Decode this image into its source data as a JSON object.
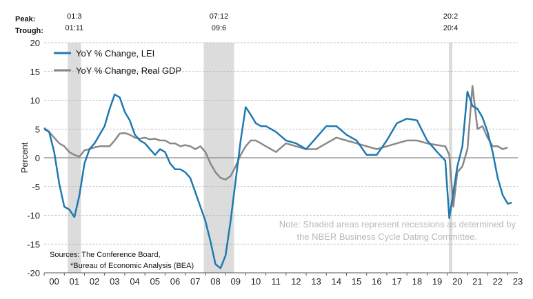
{
  "header": {
    "peak_label": "Peak:",
    "trough_label": "Trough:"
  },
  "recessions": [
    {
      "peak": "01:3",
      "trough": "01:11",
      "start": 2001.17,
      "end": 2001.83
    },
    {
      "peak": "07:12",
      "trough": "09:6",
      "start": 2007.92,
      "end": 2009.42
    },
    {
      "peak": "20:2",
      "trough": "20:4",
      "start": 2020.08,
      "end": 2020.25
    }
  ],
  "note": {
    "line1": "Note: Shaded areas represent recessions as determined by",
    "line2": "the NBER Business Cycle Dating Committee."
  },
  "sources": {
    "line1": "Sources: The Conference Board,",
    "line2": "*Bureau of Economic Analysis (BEA)"
  },
  "colors": {
    "lei": "#1f78b0",
    "gdp": "#888888",
    "recession": "#dcdcdc",
    "grid": "#b0b0b0",
    "zero": "#888888"
  },
  "chart_data": {
    "type": "line",
    "xlabel": "",
    "ylabel": "Percent",
    "xlim": [
      2000.0,
      2023.5
    ],
    "ylim": [
      -20,
      20
    ],
    "yticks": [
      20,
      15,
      10,
      5,
      0,
      -5,
      -10,
      -15,
      -20
    ],
    "xtick_labels": [
      "00",
      "01",
      "02",
      "03",
      "04",
      "05",
      "06",
      "07",
      "08",
      "09",
      "10",
      "11",
      "12",
      "13",
      "14",
      "15",
      "16",
      "17",
      "18",
      "19",
      "20",
      "21",
      "22",
      "23"
    ],
    "legend_position": "top-left",
    "series": [
      {
        "name": "YoY % Change, LEI",
        "x": [
          2000.0,
          2000.25,
          2000.5,
          2000.75,
          2001.0,
          2001.25,
          2001.5,
          2001.75,
          2002.0,
          2002.25,
          2002.5,
          2002.75,
          2003.0,
          2003.25,
          2003.5,
          2003.75,
          2004.0,
          2004.25,
          2004.5,
          2004.75,
          2005.0,
          2005.25,
          2005.5,
          2005.75,
          2006.0,
          2006.25,
          2006.5,
          2006.75,
          2007.0,
          2007.25,
          2007.5,
          2007.75,
          2008.0,
          2008.25,
          2008.5,
          2008.75,
          2009.0,
          2009.25,
          2009.5,
          2009.75,
          2010.0,
          2010.25,
          2010.5,
          2010.75,
          2011.0,
          2011.5,
          2012.0,
          2012.5,
          2013.0,
          2013.5,
          2014.0,
          2014.5,
          2015.0,
          2015.5,
          2016.0,
          2016.5,
          2017.0,
          2017.5,
          2018.0,
          2018.5,
          2019.0,
          2019.5,
          2019.9,
          2020.1,
          2020.3,
          2020.5,
          2020.75,
          2021.0,
          2021.25,
          2021.5,
          2021.75,
          2022.0,
          2022.25,
          2022.5,
          2022.75,
          2023.0,
          2023.2
        ],
        "values": [
          5.0,
          4.5,
          1.0,
          -4.5,
          -8.5,
          -9.0,
          -10.3,
          -6.5,
          -1.0,
          1.5,
          2.5,
          4.0,
          5.5,
          8.5,
          11.0,
          10.5,
          8.0,
          6.5,
          4.0,
          3.0,
          2.5,
          1.5,
          0.5,
          1.5,
          1.0,
          -1.0,
          -2.0,
          -2.0,
          -2.5,
          -3.5,
          -6.0,
          -8.5,
          -11.0,
          -14.5,
          -18.5,
          -19.2,
          -17.0,
          -11.0,
          -4.0,
          3.0,
          8.8,
          7.5,
          6.0,
          5.5,
          5.5,
          4.5,
          3.0,
          2.5,
          1.5,
          3.5,
          5.5,
          5.5,
          4.0,
          3.0,
          0.5,
          0.5,
          3.0,
          6.0,
          6.8,
          6.5,
          3.0,
          1.0,
          -0.5,
          -10.5,
          -6.0,
          -1.5,
          2.0,
          11.5,
          9.0,
          8.5,
          7.0,
          4.5,
          1.0,
          -3.5,
          -6.5,
          -8.0,
          -7.8
        ]
      },
      {
        "name": "YoY % Change, Real GDP",
        "x": [
          2000.0,
          2000.25,
          2000.5,
          2000.75,
          2001.0,
          2001.25,
          2001.5,
          2001.75,
          2002.0,
          2002.25,
          2002.5,
          2002.75,
          2003.0,
          2003.25,
          2003.5,
          2003.75,
          2004.0,
          2004.25,
          2004.5,
          2004.75,
          2005.0,
          2005.25,
          2005.5,
          2005.75,
          2006.0,
          2006.25,
          2006.5,
          2006.75,
          2007.0,
          2007.25,
          2007.5,
          2007.75,
          2008.0,
          2008.25,
          2008.5,
          2008.75,
          2009.0,
          2009.25,
          2009.5,
          2009.75,
          2010.0,
          2010.25,
          2010.5,
          2010.75,
          2011.0,
          2011.5,
          2012.0,
          2012.5,
          2013.0,
          2013.5,
          2014.0,
          2014.5,
          2015.0,
          2015.5,
          2016.0,
          2016.5,
          2017.0,
          2017.5,
          2018.0,
          2018.5,
          2019.0,
          2019.5,
          2019.9,
          2020.1,
          2020.3,
          2020.5,
          2020.75,
          2021.0,
          2021.25,
          2021.5,
          2021.75,
          2022.0,
          2022.25,
          2022.5,
          2022.75,
          2023.0
        ],
        "values": [
          5.2,
          4.5,
          3.5,
          2.5,
          2.0,
          1.0,
          0.5,
          0.2,
          1.3,
          1.5,
          1.8,
          2.0,
          2.0,
          2.0,
          3.0,
          4.2,
          4.3,
          4.0,
          3.5,
          3.3,
          3.5,
          3.2,
          3.3,
          3.0,
          3.0,
          2.5,
          2.5,
          2.0,
          2.2,
          2.0,
          1.5,
          2.0,
          1.0,
          -1.0,
          -2.5,
          -3.5,
          -3.8,
          -3.2,
          -1.5,
          0.5,
          2.0,
          3.0,
          3.0,
          2.5,
          2.0,
          1.0,
          2.5,
          2.0,
          1.5,
          1.5,
          2.5,
          3.5,
          3.0,
          2.5,
          2.0,
          1.5,
          2.0,
          2.5,
          3.0,
          3.0,
          2.5,
          2.2,
          2.0,
          0.5,
          -8.5,
          -2.5,
          -1.5,
          1.5,
          12.5,
          5.0,
          5.5,
          3.5,
          2.0,
          2.0,
          1.5,
          1.8
        ]
      }
    ]
  }
}
